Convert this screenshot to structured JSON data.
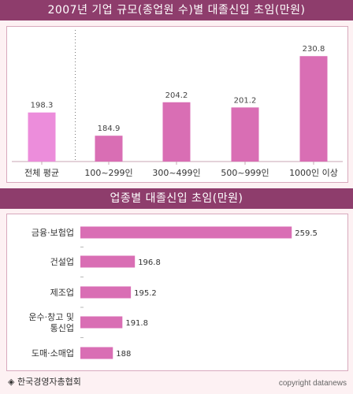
{
  "colors": {
    "title_bg": "#8e3d6c",
    "bar_primary": "#d96eb4",
    "bar_highlight": "#ec8ddb",
    "panel_bg": "#ffffff",
    "page_bg": "#fdf1f3"
  },
  "chart_data": [
    {
      "type": "bar",
      "title": "2007년 기업 규모(종업원 수)별 대졸신입 초임(만원)",
      "xlabel": "",
      "ylabel": "",
      "categories": [
        "전체 평균",
        "100~299인",
        "300~499인",
        "500~999인",
        "1000인 이상"
      ],
      "values": [
        198.3,
        184.9,
        204.2,
        201.2,
        230.8
      ],
      "value_labels": [
        "198.3",
        "184.9",
        "204.2",
        "201.2",
        "230.8"
      ],
      "highlight_index": 0,
      "ylim": [
        170,
        235
      ],
      "grid": false,
      "separator_after_index": 0
    },
    {
      "type": "bar",
      "orientation": "horizontal",
      "title": "업종별 대졸신입 초임(만원)",
      "xlabel": "",
      "ylabel": "",
      "categories": [
        "금융·보험업",
        "건설업",
        "제조업",
        "운수·창고 및\n통신업",
        "도매·소매업"
      ],
      "values": [
        259.5,
        196.8,
        195.2,
        191.8,
        188
      ],
      "value_labels": [
        "259.5",
        "196.8",
        "195.2",
        "191.8",
        "188"
      ],
      "xlim": [
        175,
        261
      ],
      "grid": false
    }
  ],
  "footer": {
    "source": "◈ 한국경영자총협회",
    "copyright": "copyright datanews"
  }
}
